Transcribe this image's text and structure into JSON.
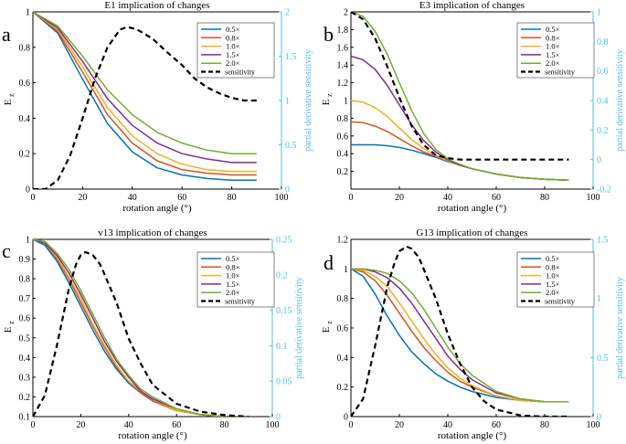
{
  "colors": {
    "axis": "#000000",
    "right_axis": "#4DBEEE",
    "sensitivity": "#000000",
    "series": [
      "#0072BD",
      "#D95319",
      "#EDB120",
      "#7E2F8E",
      "#77AC30"
    ]
  },
  "chart_data": [
    {
      "type": "line",
      "panel_letter": "a",
      "title": "E1 implication of changes",
      "xlabel": "rotation angle (°)",
      "ylabel_main": "E",
      "ylabel_sub": "z",
      "y2label": "partial derivative sensitivity",
      "xlim": [
        0,
        100
      ],
      "ylim": [
        0,
        1
      ],
      "y2lim": [
        0,
        2
      ],
      "xticks": [
        0,
        20,
        40,
        60,
        80,
        100
      ],
      "yticks": [
        0,
        0.2,
        0.4,
        0.6,
        0.8,
        1
      ],
      "ytick_labels": [
        "0",
        "0.2",
        "0.4",
        "0.6",
        "0.8",
        "1"
      ],
      "y2ticks": [
        0,
        0.5,
        1,
        1.5,
        2
      ],
      "y2tick_labels": [
        "0",
        "0.5",
        "1",
        "1.5",
        "2"
      ],
      "legend": [
        "0.5×",
        "0.8×",
        "1.0×",
        "1.5×",
        "2.0×",
        "sensitivity"
      ],
      "x": [
        0,
        10,
        20,
        30,
        40,
        50,
        60,
        70,
        80,
        90
      ],
      "series": [
        {
          "name": "0.5×",
          "values": [
            1.0,
            0.88,
            0.62,
            0.37,
            0.21,
            0.12,
            0.08,
            0.06,
            0.05,
            0.05
          ]
        },
        {
          "name": "0.8×",
          "values": [
            1.0,
            0.89,
            0.66,
            0.42,
            0.26,
            0.16,
            0.11,
            0.09,
            0.08,
            0.08
          ]
        },
        {
          "name": "1.0×",
          "values": [
            1.0,
            0.9,
            0.69,
            0.46,
            0.3,
            0.2,
            0.14,
            0.11,
            0.1,
            0.1
          ]
        },
        {
          "name": "1.5×",
          "values": [
            1.0,
            0.91,
            0.72,
            0.51,
            0.36,
            0.26,
            0.2,
            0.17,
            0.15,
            0.15
          ]
        },
        {
          "name": "2.0×",
          "values": [
            1.0,
            0.92,
            0.75,
            0.56,
            0.42,
            0.32,
            0.26,
            0.22,
            0.2,
            0.2
          ]
        }
      ],
      "sensitivity": {
        "name": "sensitivity",
        "axis": "right",
        "x": [
          0,
          5,
          10,
          15,
          20,
          25,
          30,
          35,
          38,
          42,
          48,
          55,
          60,
          65,
          70,
          75,
          80,
          85,
          90
        ],
        "values": [
          0,
          0.0,
          0.1,
          0.38,
          0.8,
          1.25,
          1.6,
          1.8,
          1.83,
          1.8,
          1.7,
          1.52,
          1.4,
          1.25,
          1.15,
          1.08,
          1.03,
          1.0,
          1.0
        ]
      }
    },
    {
      "type": "line",
      "panel_letter": "b",
      "title": "E3 implication of changes",
      "xlabel": "rotation angle (°)",
      "ylabel_main": "E",
      "ylabel_sub": "z",
      "y2label": "partial derivative sensitivity",
      "xlim": [
        0,
        100
      ],
      "ylim": [
        0,
        2
      ],
      "y2lim": [
        -0.2,
        1
      ],
      "xticks": [
        0,
        20,
        40,
        60,
        80,
        100
      ],
      "yticks": [
        0.2,
        0.4,
        0.6,
        0.8,
        1.0,
        1.2,
        1.4,
        1.6,
        1.8,
        2.0
      ],
      "ytick_labels": [
        "0.2",
        "0.4",
        "0.6",
        "0.8",
        "1",
        "1.2",
        "1.4",
        "1.6",
        "1.8",
        "2"
      ],
      "y2ticks": [
        -0.2,
        0,
        0.2,
        0.4,
        0.6,
        0.8,
        1.0
      ],
      "y2tick_labels": [
        "-0.2",
        "0",
        "0.2",
        "0.4",
        "0.6",
        "0.8",
        "1"
      ],
      "legend": [
        "0.5×",
        "0.8×",
        "1.0×",
        "1.5×",
        "2.0×",
        "sensitivity"
      ],
      "x": [
        0,
        5,
        10,
        15,
        20,
        25,
        30,
        35,
        40,
        45,
        50,
        60,
        70,
        80,
        90
      ],
      "series": [
        {
          "name": "0.5×",
          "values": [
            0.5,
            0.5,
            0.5,
            0.49,
            0.47,
            0.44,
            0.4,
            0.36,
            0.31,
            0.27,
            0.23,
            0.17,
            0.13,
            0.11,
            0.1
          ]
        },
        {
          "name": "0.8×",
          "values": [
            0.76,
            0.75,
            0.71,
            0.65,
            0.57,
            0.49,
            0.42,
            0.37,
            0.32,
            0.27,
            0.23,
            0.17,
            0.13,
            0.11,
            0.1
          ]
        },
        {
          "name": "1.0×",
          "values": [
            1.0,
            0.98,
            0.92,
            0.82,
            0.69,
            0.56,
            0.46,
            0.38,
            0.32,
            0.27,
            0.23,
            0.17,
            0.13,
            0.11,
            0.1
          ]
        },
        {
          "name": "1.5×",
          "values": [
            1.5,
            1.46,
            1.35,
            1.17,
            0.95,
            0.73,
            0.55,
            0.42,
            0.33,
            0.27,
            0.23,
            0.17,
            0.13,
            0.11,
            0.1
          ]
        },
        {
          "name": "2.0×",
          "values": [
            2.0,
            1.95,
            1.78,
            1.52,
            1.2,
            0.89,
            0.63,
            0.45,
            0.34,
            0.28,
            0.23,
            0.17,
            0.13,
            0.11,
            0.1
          ]
        }
      ],
      "sensitivity": {
        "name": "sensitivity",
        "axis": "right",
        "x": [
          0,
          5,
          10,
          15,
          20,
          25,
          30,
          35,
          40,
          45,
          50,
          60,
          70,
          80,
          90
        ],
        "values": [
          1.0,
          0.95,
          0.82,
          0.63,
          0.42,
          0.23,
          0.1,
          0.03,
          0.01,
          0.0,
          0.0,
          0.0,
          0.0,
          0.0,
          0.0
        ]
      }
    },
    {
      "type": "line",
      "panel_letter": "c",
      "title": "v13 implication of changes",
      "xlabel": "rotation angle (°)",
      "ylabel_main": "E",
      "ylabel_sub": "z",
      "y2label": "partial derivative sensitivity",
      "xlim": [
        0,
        100
      ],
      "ylim": [
        0.1,
        1
      ],
      "y2lim": [
        0,
        0.25
      ],
      "xticks": [
        0,
        20,
        40,
        60,
        80,
        100
      ],
      "yticks": [
        0.1,
        0.2,
        0.3,
        0.4,
        0.5,
        0.6,
        0.7,
        0.8,
        0.9,
        1.0
      ],
      "ytick_labels": [
        "0.1",
        "0.2",
        "0.3",
        "0.4",
        "0.5",
        "0.6",
        "0.7",
        "0.8",
        "0.9",
        "1"
      ],
      "y2ticks": [
        0,
        0.05,
        0.1,
        0.15,
        0.2,
        0.25
      ],
      "y2tick_labels": [
        "0",
        "0.05",
        "0.1",
        "0.15",
        "0.2",
        "0.25"
      ],
      "legend": [
        "0.5×",
        "0.8×",
        "1.0×",
        "1.5×",
        "2.0×",
        "sensitivity"
      ],
      "x": [
        0,
        5,
        10,
        15,
        20,
        25,
        30,
        35,
        40,
        45,
        50,
        60,
        70,
        80,
        90
      ],
      "series": [
        {
          "name": "0.5×",
          "values": [
            1.0,
            0.97,
            0.89,
            0.78,
            0.66,
            0.54,
            0.43,
            0.34,
            0.27,
            0.22,
            0.18,
            0.13,
            0.11,
            0.1,
            0.1
          ]
        },
        {
          "name": "0.8×",
          "values": [
            1.0,
            0.98,
            0.9,
            0.8,
            0.68,
            0.56,
            0.45,
            0.35,
            0.28,
            0.22,
            0.18,
            0.13,
            0.11,
            0.1,
            0.1
          ]
        },
        {
          "name": "1.0×",
          "values": [
            1.0,
            0.98,
            0.91,
            0.81,
            0.7,
            0.57,
            0.46,
            0.36,
            0.28,
            0.23,
            0.19,
            0.13,
            0.11,
            0.1,
            0.1
          ]
        },
        {
          "name": "1.5×",
          "values": [
            1.0,
            0.98,
            0.92,
            0.83,
            0.72,
            0.6,
            0.48,
            0.38,
            0.3,
            0.23,
            0.19,
            0.14,
            0.11,
            0.1,
            0.1
          ]
        },
        {
          "name": "2.0×",
          "values": [
            1.0,
            0.99,
            0.93,
            0.85,
            0.74,
            0.62,
            0.5,
            0.39,
            0.31,
            0.24,
            0.2,
            0.14,
            0.11,
            0.1,
            0.1
          ]
        }
      ],
      "sensitivity": {
        "name": "sensitivity",
        "axis": "right",
        "x": [
          0,
          5,
          10,
          15,
          18,
          20,
          22,
          25,
          28,
          30,
          35,
          40,
          45,
          50,
          60,
          70,
          80,
          90
        ],
        "values": [
          0,
          0.03,
          0.1,
          0.18,
          0.215,
          0.228,
          0.232,
          0.228,
          0.215,
          0.2,
          0.16,
          0.11,
          0.075,
          0.045,
          0.018,
          0.007,
          0.002,
          0.0
        ]
      }
    },
    {
      "type": "line",
      "panel_letter": "d",
      "title": "G13 implication of changes",
      "xlabel": "rotation angle (°)",
      "ylabel_main": "E",
      "ylabel_sub": "z",
      "y2label": "partial derivative sensitivity",
      "xlim": [
        0,
        100
      ],
      "ylim": [
        0,
        1.2
      ],
      "y2lim": [
        0,
        1.5
      ],
      "xticks": [
        0,
        20,
        40,
        60,
        80,
        100
      ],
      "yticks": [
        0,
        0.2,
        0.4,
        0.6,
        0.8,
        1.0,
        1.2
      ],
      "ytick_labels": [
        "0",
        "0.2",
        "0.4",
        "0.6",
        "0.8",
        "1",
        "1.2"
      ],
      "y2ticks": [
        0,
        0.5,
        1,
        1.5
      ],
      "y2tick_labels": [
        "0",
        "0.5",
        "1",
        "1.5"
      ],
      "legend": [
        "0.5×",
        "0.8×",
        "1.0×",
        "1.5×",
        "2.0×",
        "sensitivity"
      ],
      "x": [
        0,
        5,
        10,
        15,
        20,
        25,
        30,
        35,
        40,
        45,
        50,
        60,
        70,
        80,
        90
      ],
      "series": [
        {
          "name": "0.5×",
          "values": [
            1.0,
            0.95,
            0.83,
            0.68,
            0.55,
            0.44,
            0.36,
            0.29,
            0.24,
            0.2,
            0.17,
            0.13,
            0.11,
            0.1,
            0.1
          ]
        },
        {
          "name": "0.8×",
          "values": [
            1.0,
            0.98,
            0.92,
            0.82,
            0.7,
            0.58,
            0.47,
            0.38,
            0.3,
            0.24,
            0.2,
            0.14,
            0.11,
            0.1,
            0.1
          ]
        },
        {
          "name": "1.0×",
          "values": [
            1.0,
            0.99,
            0.95,
            0.88,
            0.77,
            0.65,
            0.53,
            0.42,
            0.33,
            0.26,
            0.21,
            0.14,
            0.11,
            0.1,
            0.1
          ]
        },
        {
          "name": "1.5×",
          "values": [
            1.0,
            1.0,
            0.98,
            0.94,
            0.87,
            0.77,
            0.65,
            0.53,
            0.41,
            0.32,
            0.25,
            0.16,
            0.12,
            0.1,
            0.1
          ]
        },
        {
          "name": "2.0×",
          "values": [
            1.0,
            1.0,
            0.99,
            0.97,
            0.92,
            0.84,
            0.73,
            0.6,
            0.47,
            0.36,
            0.28,
            0.17,
            0.12,
            0.1,
            0.1
          ]
        }
      ],
      "sensitivity": {
        "name": "sensitivity",
        "axis": "right",
        "x": [
          0,
          5,
          10,
          15,
          18,
          20,
          23,
          25,
          28,
          30,
          35,
          40,
          45,
          50,
          55,
          60,
          70,
          80,
          90
        ],
        "values": [
          0,
          0.15,
          0.6,
          1.1,
          1.3,
          1.4,
          1.44,
          1.42,
          1.35,
          1.25,
          1.0,
          0.7,
          0.45,
          0.25,
          0.13,
          0.06,
          0.01,
          0.0,
          0.0
        ]
      }
    }
  ]
}
